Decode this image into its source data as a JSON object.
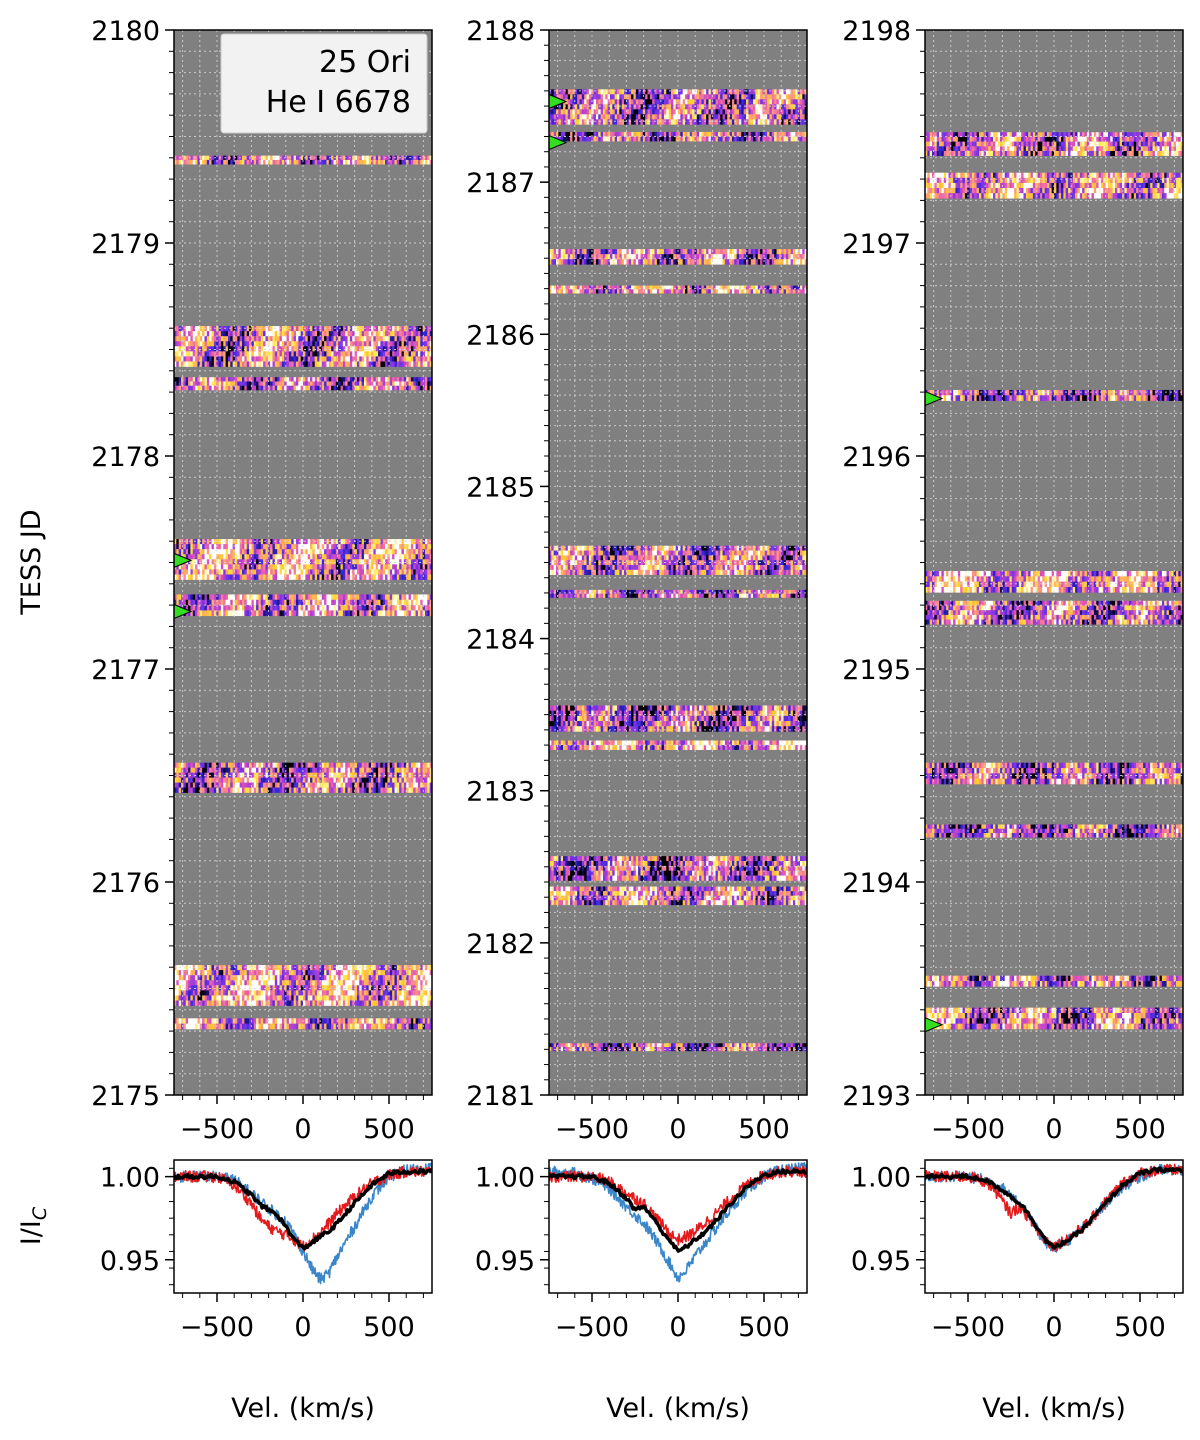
{
  "figure": {
    "title_line1": "25 Ori",
    "title_line2": "He I 6678",
    "ylabel_top": "TESS JD",
    "ylabel_bottom": "I/I",
    "ylabel_bottom_sub": "C",
    "xlabel": "Vel. (km/s)"
  },
  "colors": {
    "grey_bg": "#808080",
    "obs_red": "#e41a1c",
    "obs_blue": "#3a86c8",
    "mean": "#000000",
    "marker": "#33dd22"
  },
  "chart_data": [
    {
      "type": "heatmap",
      "panel": "left",
      "title": "25 Ori He I 6678",
      "xlabel": "",
      "ylabel": "TESS JD",
      "xlim": [
        -750,
        750
      ],
      "ylim": [
        2175,
        2180
      ],
      "x_ticks": [
        -500,
        0,
        500
      ],
      "y_ticks": [
        2175,
        2176,
        2177,
        2178,
        2179,
        2180
      ],
      "tick_labels_x": [
        "−500",
        "0",
        "500"
      ],
      "tick_labels_y": [
        "2175",
        "2176",
        "2177",
        "2178",
        "2179",
        "2180"
      ],
      "observations": [
        {
          "jd_start": 2175.31,
          "jd_end": 2175.36
        },
        {
          "jd_start": 2175.42,
          "jd_end": 2175.61
        },
        {
          "jd_start": 2176.42,
          "jd_end": 2176.56
        },
        {
          "jd_start": 2177.25,
          "jd_end": 2177.35
        },
        {
          "jd_start": 2177.42,
          "jd_end": 2177.61
        },
        {
          "jd_start": 2178.31,
          "jd_end": 2178.37
        },
        {
          "jd_start": 2178.42,
          "jd_end": 2178.61
        },
        {
          "jd_start": 2179.37,
          "jd_end": 2179.41
        }
      ],
      "markers_jd": [
        2177.27,
        2177.51
      ]
    },
    {
      "type": "heatmap",
      "panel": "middle",
      "xlim": [
        -750,
        750
      ],
      "ylim": [
        2181,
        2188
      ],
      "x_ticks": [
        -500,
        0,
        500
      ],
      "y_ticks": [
        2181,
        2182,
        2183,
        2184,
        2185,
        2186,
        2187,
        2188
      ],
      "tick_labels_x": [
        "−500",
        "0",
        "500"
      ],
      "tick_labels_y": [
        "2181",
        "2182",
        "2183",
        "2184",
        "2185",
        "2186",
        "2187",
        "2188"
      ],
      "observations": [
        {
          "jd_start": 2181.29,
          "jd_end": 2181.34
        },
        {
          "jd_start": 2182.25,
          "jd_end": 2182.37
        },
        {
          "jd_start": 2182.41,
          "jd_end": 2182.57
        },
        {
          "jd_start": 2183.27,
          "jd_end": 2183.33
        },
        {
          "jd_start": 2183.39,
          "jd_end": 2183.56
        },
        {
          "jd_start": 2184.27,
          "jd_end": 2184.32
        },
        {
          "jd_start": 2184.42,
          "jd_end": 2184.61
        },
        {
          "jd_start": 2186.27,
          "jd_end": 2186.32
        },
        {
          "jd_start": 2186.46,
          "jd_end": 2186.56
        },
        {
          "jd_start": 2187.27,
          "jd_end": 2187.33
        },
        {
          "jd_start": 2187.38,
          "jd_end": 2187.61
        }
      ],
      "markers_jd": [
        2187.26,
        2187.53
      ]
    },
    {
      "type": "heatmap",
      "panel": "right",
      "xlim": [
        -750,
        750
      ],
      "ylim": [
        2193,
        2198
      ],
      "x_ticks": [
        -500,
        0,
        500
      ],
      "y_ticks": [
        2193,
        2194,
        2195,
        2196,
        2197,
        2198
      ],
      "tick_labels_x": [
        "−500",
        "0",
        "500"
      ],
      "tick_labels_y": [
        "2193",
        "2194",
        "2195",
        "2196",
        "2197",
        "2198"
      ],
      "observations": [
        {
          "jd_start": 2193.31,
          "jd_end": 2193.41
        },
        {
          "jd_start": 2193.51,
          "jd_end": 2193.56
        },
        {
          "jd_start": 2194.21,
          "jd_end": 2194.27
        },
        {
          "jd_start": 2194.46,
          "jd_end": 2194.56
        },
        {
          "jd_start": 2195.21,
          "jd_end": 2195.32
        },
        {
          "jd_start": 2195.36,
          "jd_end": 2195.46
        },
        {
          "jd_start": 2196.26,
          "jd_end": 2196.31
        },
        {
          "jd_start": 2197.21,
          "jd_end": 2197.33
        },
        {
          "jd_start": 2197.41,
          "jd_end": 2197.52
        }
      ],
      "markers_jd": [
        2193.33,
        2196.27
      ]
    },
    {
      "type": "line",
      "panel": "left",
      "xlabel": "Vel. (km/s)",
      "ylabel": "I/I_C",
      "xlim": [
        -750,
        750
      ],
      "ylim": [
        0.93,
        1.01
      ],
      "y_ticks": [
        0.95,
        1.0
      ],
      "tick_labels_y": [
        "0.95",
        "1.00"
      ],
      "tick_labels_x": [
        "−500",
        "0",
        "500"
      ],
      "series": [
        {
          "name": "red",
          "x": [
            -750,
            -500,
            -400,
            -300,
            -250,
            -200,
            -150,
            -100,
            -50,
            0,
            50,
            100,
            150,
            200,
            300,
            400,
            500,
            600,
            750
          ],
          "y": [
            1.0,
            1.0,
            0.995,
            0.984,
            0.975,
            0.97,
            0.967,
            0.965,
            0.962,
            0.958,
            0.962,
            0.966,
            0.972,
            0.978,
            0.988,
            0.996,
            1.001,
            1.003,
            1.003
          ]
        },
        {
          "name": "blue",
          "x": [
            -750,
            -500,
            -400,
            -300,
            -200,
            -100,
            -50,
            0,
            50,
            100,
            150,
            200,
            300,
            400,
            500,
            600,
            750
          ],
          "y": [
            1.0,
            1.0,
            0.998,
            0.99,
            0.981,
            0.973,
            0.965,
            0.955,
            0.945,
            0.938,
            0.942,
            0.952,
            0.97,
            0.988,
            1.0,
            1.004,
            1.005
          ]
        },
        {
          "name": "mean",
          "x": [
            -750,
            -500,
            -400,
            -300,
            -250,
            -200,
            -150,
            -100,
            -50,
            0,
            50,
            100,
            150,
            200,
            300,
            400,
            500,
            600,
            750
          ],
          "y": [
            1.0,
            1.0,
            0.997,
            0.989,
            0.983,
            0.98,
            0.977,
            0.97,
            0.962,
            0.957,
            0.96,
            0.964,
            0.967,
            0.972,
            0.984,
            0.995,
            1.002,
            1.003,
            1.003
          ]
        }
      ]
    },
    {
      "type": "line",
      "panel": "middle",
      "xlabel": "Vel. (km/s)",
      "xlim": [
        -750,
        750
      ],
      "ylim": [
        0.93,
        1.01
      ],
      "y_ticks": [
        0.95,
        1.0
      ],
      "tick_labels_y": [
        "0.95",
        "1.00"
      ],
      "tick_labels_x": [
        "−500",
        "0",
        "500"
      ],
      "series": [
        {
          "name": "red",
          "x": [
            -750,
            -500,
            -400,
            -300,
            -200,
            -100,
            -50,
            0,
            50,
            100,
            200,
            300,
            400,
            500,
            600,
            750
          ],
          "y": [
            1.0,
            1.0,
            0.997,
            0.99,
            0.984,
            0.972,
            0.966,
            0.962,
            0.964,
            0.967,
            0.976,
            0.986,
            0.995,
            1.001,
            1.003,
            1.003
          ]
        },
        {
          "name": "blue",
          "x": [
            -750,
            -600,
            -500,
            -400,
            -300,
            -250,
            -200,
            -150,
            -100,
            -50,
            0,
            50,
            100,
            200,
            300,
            400,
            500,
            600,
            750
          ],
          "y": [
            1.003,
            1.002,
            0.999,
            0.993,
            0.982,
            0.977,
            0.972,
            0.965,
            0.957,
            0.948,
            0.939,
            0.944,
            0.952,
            0.966,
            0.98,
            0.992,
            1.0,
            1.004,
            1.005
          ]
        },
        {
          "name": "mean",
          "x": [
            -750,
            -500,
            -400,
            -300,
            -250,
            -200,
            -150,
            -100,
            -50,
            0,
            50,
            100,
            150,
            200,
            300,
            400,
            500,
            600,
            750
          ],
          "y": [
            1.0,
            1.0,
            0.996,
            0.987,
            0.98,
            0.982,
            0.976,
            0.968,
            0.962,
            0.955,
            0.958,
            0.962,
            0.966,
            0.971,
            0.983,
            0.994,
            1.001,
            1.003,
            1.003
          ]
        }
      ]
    },
    {
      "type": "line",
      "panel": "right",
      "xlabel": "Vel. (km/s)",
      "xlim": [
        -750,
        750
      ],
      "ylim": [
        0.93,
        1.01
      ],
      "y_ticks": [
        0.95,
        1.0
      ],
      "tick_labels_y": [
        "0.95",
        "1.00"
      ],
      "tick_labels_x": [
        "−500",
        "0",
        "500"
      ],
      "series": [
        {
          "name": "red",
          "x": [
            -750,
            -500,
            -400,
            -350,
            -300,
            -250,
            -200,
            -150,
            -100,
            -50,
            0,
            50,
            100,
            200,
            300,
            400,
            500,
            600,
            750
          ],
          "y": [
            1.0,
            1.0,
            0.997,
            0.993,
            0.985,
            0.978,
            0.982,
            0.976,
            0.968,
            0.962,
            0.958,
            0.961,
            0.964,
            0.972,
            0.985,
            0.996,
            1.002,
            1.004,
            1.004
          ]
        },
        {
          "name": "blue",
          "x": [
            -750,
            -500,
            -400,
            -300,
            -200,
            -100,
            -50,
            0,
            50,
            100,
            200,
            300,
            400,
            500,
            600,
            750
          ],
          "y": [
            1.0,
            1.0,
            0.998,
            0.993,
            0.985,
            0.968,
            0.961,
            0.957,
            0.96,
            0.963,
            0.972,
            0.984,
            0.994,
            1.0,
            1.004,
            1.004
          ]
        },
        {
          "name": "mean",
          "x": [
            -750,
            -500,
            -400,
            -300,
            -250,
            -200,
            -150,
            -100,
            -50,
            0,
            50,
            100,
            150,
            200,
            300,
            400,
            500,
            600,
            750
          ],
          "y": [
            1.0,
            1.0,
            0.998,
            0.992,
            0.988,
            0.984,
            0.978,
            0.97,
            0.962,
            0.957,
            0.96,
            0.963,
            0.967,
            0.972,
            0.984,
            0.995,
            1.002,
            1.004,
            1.004
          ]
        }
      ]
    }
  ]
}
